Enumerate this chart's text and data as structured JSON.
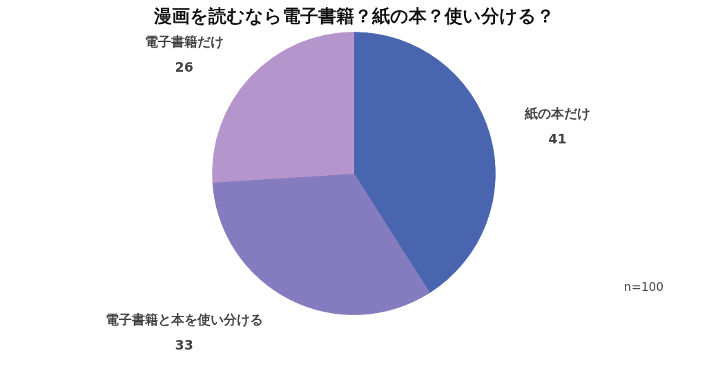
{
  "chart_data": {
    "type": "pie",
    "title": "漫画を読むなら電子書籍？紙の本？使い分ける？",
    "categories": [
      "紙の本だけ",
      "電子書籍と本を使い分ける",
      "電子書籍だけ"
    ],
    "values": [
      41,
      33,
      26
    ],
    "colors": [
      "#4a65b0",
      "#857cc0",
      "#b596cc"
    ],
    "data_labels": true,
    "annotations": [
      "n=100"
    ]
  }
}
